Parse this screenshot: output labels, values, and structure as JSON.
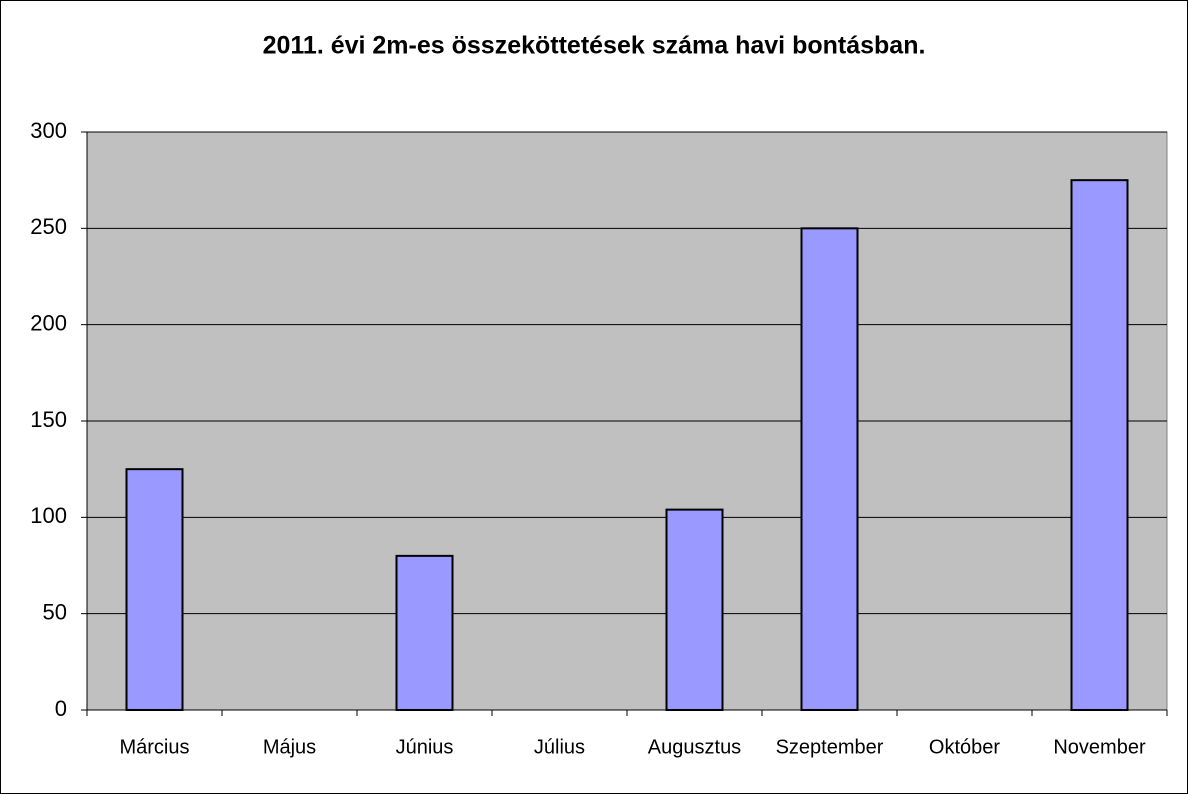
{
  "chart_data": {
    "type": "bar",
    "title": "2011. évi 2m-es összeköttetések száma havi bontásban.",
    "categories": [
      "Március",
      "Május",
      "Június",
      "Július",
      "Augusztus",
      "Szeptember",
      "Október",
      "November"
    ],
    "values": [
      125,
      0,
      80,
      0,
      104,
      250,
      0,
      275
    ],
    "color": "#9999ff",
    "plot_background": "#c0c0c0",
    "ylim": [
      0,
      300
    ],
    "yticks": [
      0,
      50,
      100,
      150,
      200,
      250,
      300
    ],
    "grid": true
  }
}
